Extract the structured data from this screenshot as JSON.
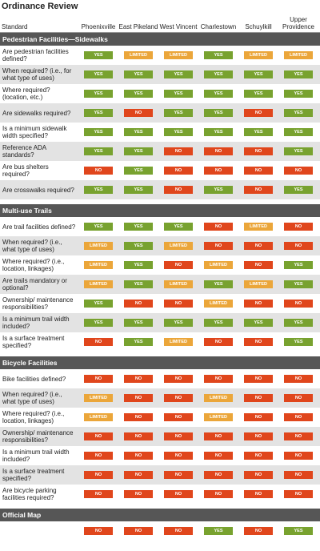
{
  "header": {
    "title": "Ordinance Review"
  },
  "status_colors": {
    "YES": "#78a22f",
    "NO": "#e0461c",
    "LIMITED": "#eba63a"
  },
  "table": {
    "columns": [
      "Standard",
      "Phoenixville",
      "East Pikeland",
      "West Vincent",
      "Charlestown",
      "Schuylkill",
      "Upper Providence"
    ],
    "sections": [
      {
        "title": "Pedestrian Facilities—Sidewalks",
        "rows": [
          {
            "label": "Are pedestrian facilities defined?",
            "values": [
              "YES",
              "LIMITED",
              "LIMITED",
              "YES",
              "LIMITED",
              "LIMITED"
            ]
          },
          {
            "label": "When required? (i.e., for what type of uses)",
            "values": [
              "YES",
              "YES",
              "YES",
              "YES",
              "YES",
              "YES"
            ]
          },
          {
            "label": "Where required? (location, etc.)",
            "values": [
              "YES",
              "YES",
              "YES",
              "YES",
              "YES",
              "YES"
            ]
          },
          {
            "label": "Are sidewalks required?",
            "values": [
              "YES",
              "NO",
              "YES",
              "YES",
              "NO",
              "YES"
            ]
          },
          {
            "label": "Is a minimum sidewalk width specified?",
            "values": [
              "YES",
              "YES",
              "YES",
              "YES",
              "YES",
              "YES"
            ]
          },
          {
            "label": "Reference ADA standards?",
            "values": [
              "YES",
              "YES",
              "NO",
              "NO",
              "NO",
              "YES"
            ]
          },
          {
            "label": "Are bus shelters required?",
            "values": [
              "NO",
              "YES",
              "NO",
              "NO",
              "NO",
              "NO"
            ]
          },
          {
            "label": "Are crosswalks required?",
            "values": [
              "YES",
              "YES",
              "NO",
              "YES",
              "NO",
              "YES"
            ]
          }
        ]
      },
      {
        "title": "Multi-use Trails",
        "rows": [
          {
            "label": "Are trail facilities defined?",
            "values": [
              "YES",
              "YES",
              "YES",
              "NO",
              "LIMITED",
              "NO"
            ]
          },
          {
            "label": "When required? (i.e., what type of uses)",
            "values": [
              "LIMITED",
              "YES",
              "LIMITED",
              "NO",
              "NO",
              "NO"
            ]
          },
          {
            "label": "Where required? (i.e., location, linkages)",
            "values": [
              "LIMITED",
              "YES",
              "NO",
              "LIMITED",
              "NO",
              "YES"
            ]
          },
          {
            "label": "Are trails mandatory or optional?",
            "values": [
              "LIMITED",
              "YES",
              "LIMITED",
              "YES",
              "LIMITED",
              "YES"
            ]
          },
          {
            "label": "Ownership/ maintenance responsibilities?",
            "values": [
              "YES",
              "NO",
              "NO",
              "LIMITED",
              "NO",
              "NO"
            ]
          },
          {
            "label": "Is a minimum trail width included?",
            "values": [
              "YES",
              "YES",
              "YES",
              "YES",
              "YES",
              "YES"
            ]
          },
          {
            "label": "Is a surface treatment specified?",
            "values": [
              "NO",
              "YES",
              "LIMITED",
              "NO",
              "NO",
              "YES"
            ]
          }
        ]
      },
      {
        "title": "Bicycle Facilities",
        "rows": [
          {
            "label": "Bike facilities defined?",
            "values": [
              "NO",
              "NO",
              "NO",
              "NO",
              "NO",
              "NO"
            ]
          },
          {
            "label": "When required? (i.e., what type of uses)",
            "values": [
              "LIMITED",
              "NO",
              "NO",
              "LIMITED",
              "NO",
              "NO"
            ]
          },
          {
            "label": "Where required? (i.e., location, linkages)",
            "values": [
              "LIMITED",
              "NO",
              "NO",
              "LIMITED",
              "NO",
              "NO"
            ]
          },
          {
            "label": "Ownership/ maintenance responsibilities?",
            "values": [
              "NO",
              "NO",
              "NO",
              "NO",
              "NO",
              "NO"
            ]
          },
          {
            "label": "Is a minimum trail width included?",
            "values": [
              "NO",
              "NO",
              "NO",
              "NO",
              "NO",
              "NO"
            ]
          },
          {
            "label": "Is a surface treatment specified?",
            "values": [
              "NO",
              "NO",
              "NO",
              "NO",
              "NO",
              "NO"
            ]
          },
          {
            "label": "Are bicycle parking facilities required?",
            "values": [
              "NO",
              "NO",
              "NO",
              "NO",
              "NO",
              "NO"
            ]
          }
        ]
      },
      {
        "title": "Official Map",
        "rows": [
          {
            "values": [
              "NO",
              "NO",
              "NO",
              "YES",
              "NO",
              "YES"
            ]
          }
        ]
      }
    ]
  }
}
